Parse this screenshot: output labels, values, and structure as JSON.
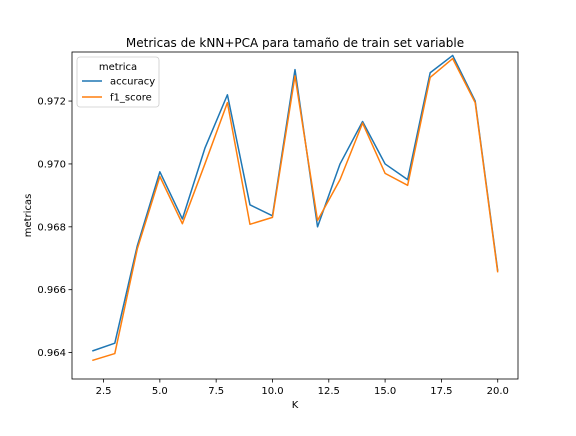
{
  "chart_data": {
    "type": "line",
    "title": "Metricas de kNN+PCA para tamaño de train set variable",
    "xlabel": "K",
    "ylabel": "metricas",
    "x": [
      2,
      3,
      4,
      5,
      6,
      7,
      8,
      9,
      10,
      11,
      12,
      13,
      14,
      15,
      16,
      17,
      18,
      19,
      20
    ],
    "xlim": [
      1.1,
      20.9
    ],
    "ylim": [
      0.96316,
      0.97356
    ],
    "xticks": [
      2.5,
      5.0,
      7.5,
      10.0,
      12.5,
      15.0,
      17.5,
      20.0
    ],
    "xtick_labels": [
      "2.5",
      "5.0",
      "7.5",
      "10.0",
      "12.5",
      "15.0",
      "17.5",
      "20.0"
    ],
    "yticks": [
      0.964,
      0.966,
      0.968,
      0.97,
      0.972
    ],
    "ytick_labels": [
      "0.964",
      "0.966",
      "0.968",
      "0.970",
      "0.972"
    ],
    "grid": false,
    "legend": {
      "title": "metrica",
      "placement": "upper left"
    },
    "series": [
      {
        "name": "accuracy",
        "color": "#1f77b4",
        "values": [
          0.96405,
          0.9643,
          0.9674,
          0.96975,
          0.96825,
          0.9705,
          0.9722,
          0.9687,
          0.96835,
          0.973,
          0.968,
          0.97,
          0.97135,
          0.97,
          0.9695,
          0.9729,
          0.97345,
          0.972,
          0.9666
        ]
      },
      {
        "name": "f1_score",
        "color": "#ff7f0e",
        "values": [
          0.96375,
          0.96397,
          0.9673,
          0.9696,
          0.9681,
          0.97,
          0.97195,
          0.96808,
          0.9683,
          0.9728,
          0.9682,
          0.9695,
          0.9713,
          0.9697,
          0.96932,
          0.97275,
          0.97335,
          0.97195,
          0.96655
        ]
      }
    ]
  }
}
